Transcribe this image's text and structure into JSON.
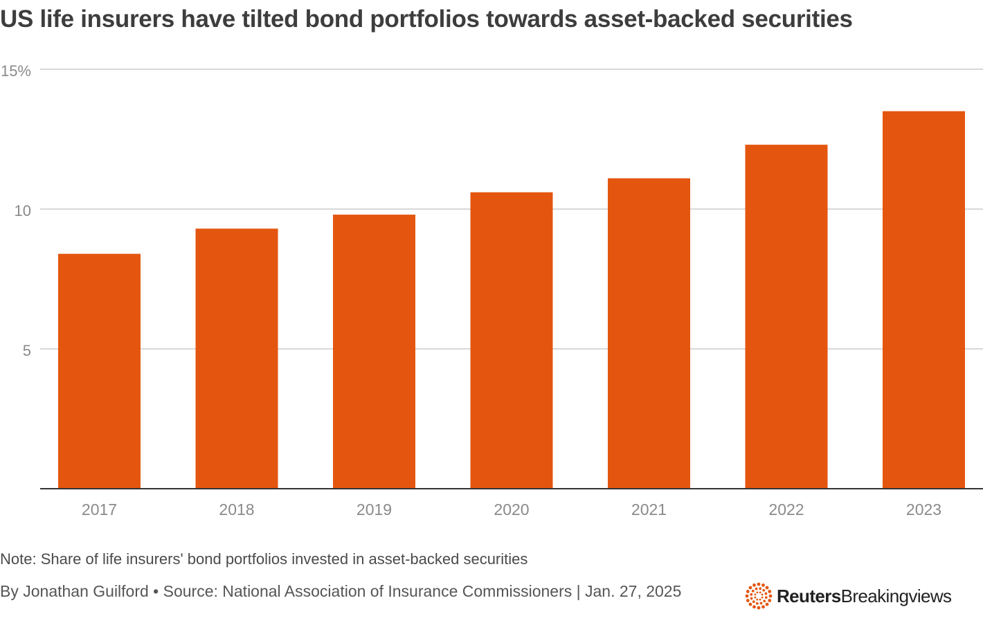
{
  "title": "US life insurers have tilted bond portfolios towards asset-backed securities",
  "note": "Note: Share of life insurers' bond portfolios invested in asset-backed securities",
  "byline": "By Jonathan Guilford • Source: National Association of Insurance Commissioners | Jan. 27, 2025",
  "logo": {
    "brand": "Reuters",
    "product": "Breakingviews",
    "icon": "reuters-dots-logo-icon"
  },
  "colors": {
    "bar": "#e4560f",
    "grid": "#cccccc",
    "axis": "#333333",
    "tick": "#8a8a8a",
    "logo_accent": "#e4560f"
  },
  "chart_data": {
    "type": "bar",
    "categories": [
      "2017",
      "2018",
      "2019",
      "2020",
      "2021",
      "2022",
      "2023"
    ],
    "values": [
      8.4,
      9.3,
      9.8,
      10.6,
      11.1,
      12.3,
      13.5
    ],
    "ylim": [
      0,
      15
    ],
    "yticks": [
      {
        "value": 5,
        "label": "5"
      },
      {
        "value": 10,
        "label": "10"
      },
      {
        "value": 15,
        "label": "15%"
      }
    ],
    "grid": true,
    "legend": "none"
  }
}
